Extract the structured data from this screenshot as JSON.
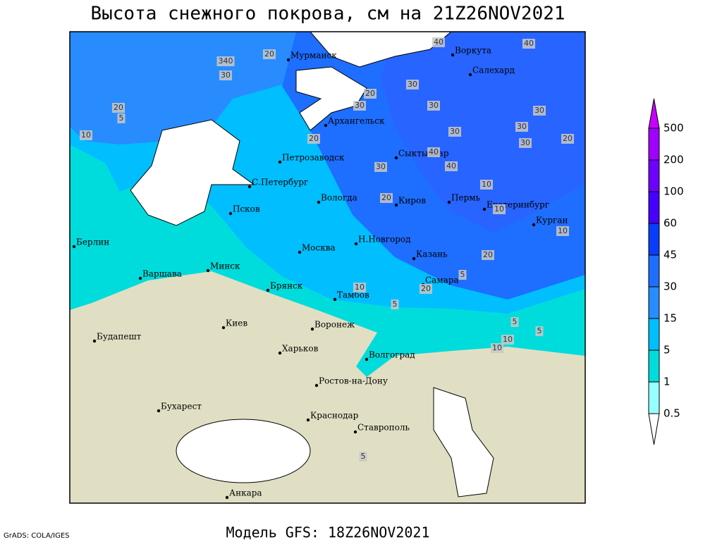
{
  "title": "Высота снежного покрова, см на 21Z26NOV2021",
  "footer": "Модель GFS: 18Z26NOV2021",
  "credit": "GrADS: COLA/IGES",
  "cities": [
    "Мурманск",
    "Воркута",
    "Салехард",
    "Архангельск",
    "Сыктывкар",
    "Петрозаводск",
    "С.Петербург",
    "Вологда",
    "Киров",
    "Пермь",
    "Екатеринбург",
    "Курган",
    "Псков",
    "Берлин",
    "Н.Новгород",
    "Москва",
    "Казань",
    "Минск",
    "Варшава",
    "Самара",
    "Брянск",
    "Тамбов",
    "Киев",
    "Воронеж",
    "Будапешт",
    "Харьков",
    "Волгоград",
    "Ростов-на-Дону",
    "Бухарест",
    "Краснодар",
    "Ставрополь",
    "Анкара"
  ],
  "contour_labels": [
    "40",
    "40",
    "340",
    "30",
    "20",
    "20",
    "30",
    "30",
    "30",
    "30",
    "30",
    "20",
    "30",
    "30",
    "40",
    "20",
    "30",
    "40",
    "20",
    "10",
    "20",
    "10",
    "10",
    "10",
    "20",
    "10",
    "5",
    "20",
    "5",
    "10",
    "5",
    "5",
    "10",
    "5",
    "5"
  ],
  "legend": {
    "labels": [
      "500",
      "200",
      "100",
      "60",
      "45",
      "30",
      "15",
      "5",
      "1",
      "0.5"
    ],
    "colors": [
      "#c800ff",
      "#a000ff",
      "#6e00ff",
      "#4600ff",
      "#0a3cff",
      "#1e6eff",
      "#288cff",
      "#00beff",
      "#00dcdc",
      "#96ffff",
      "#ffffff"
    ]
  }
}
